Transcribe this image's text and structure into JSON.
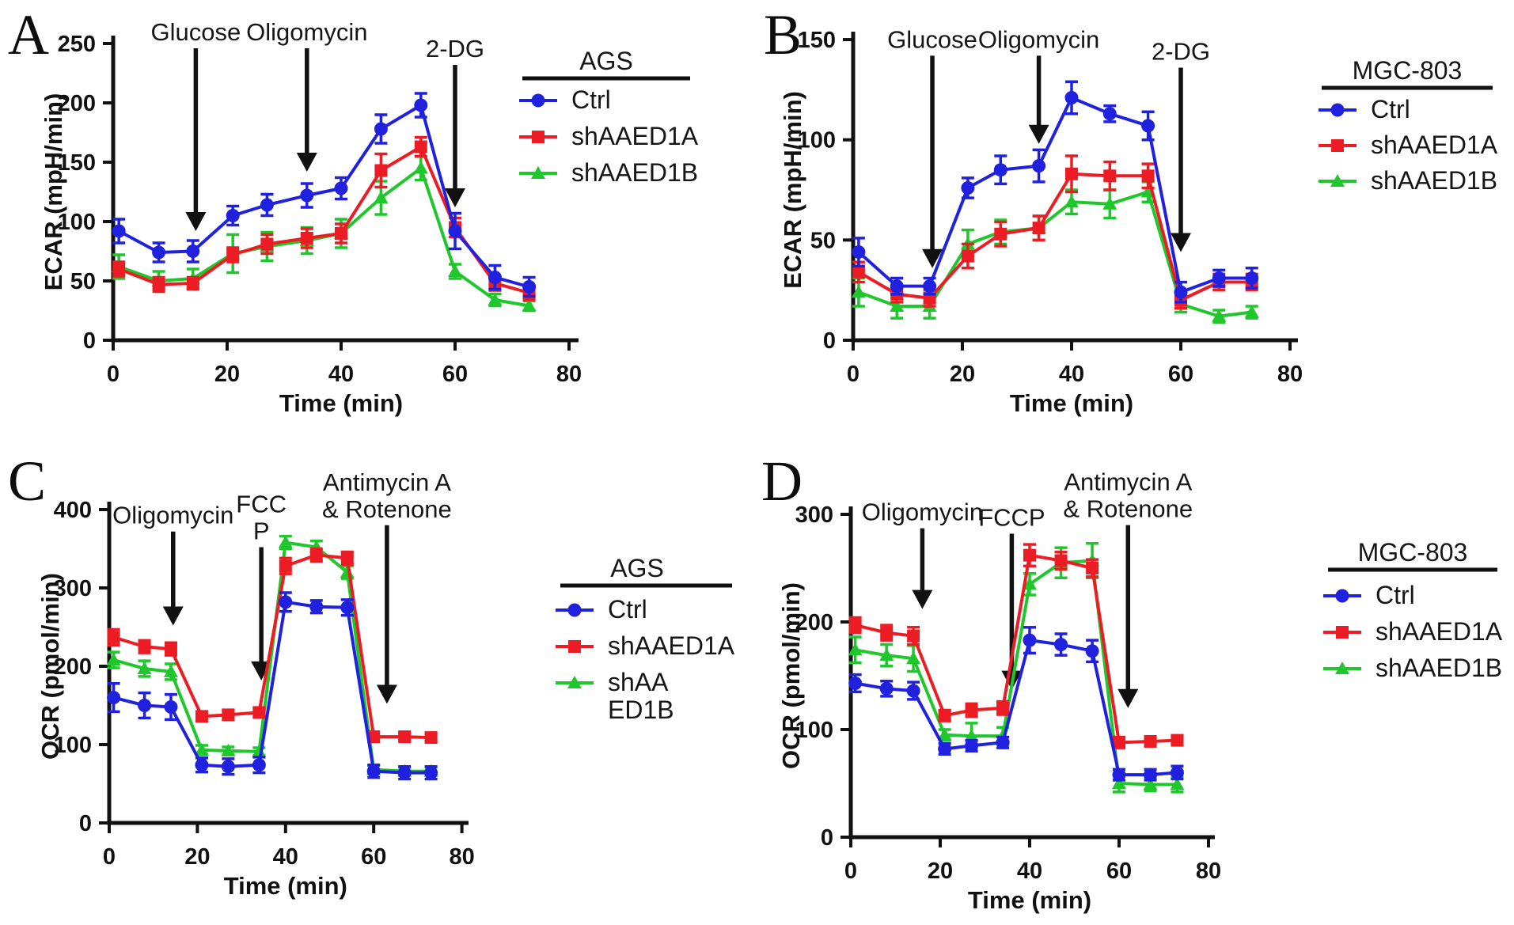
{
  "figure_title": "",
  "chart_data": [
    {
      "panel_letter": "A",
      "type": "line",
      "cell_line": "AGS",
      "legend_title": "AGS",
      "xlabel": "Time (min)",
      "ylabel": "ECAR (mpH/min)",
      "xlim": [
        0,
        80
      ],
      "ylim": [
        0,
        250
      ],
      "xticks": [
        0,
        20,
        40,
        60,
        80
      ],
      "yticks": [
        0,
        50,
        100,
        150,
        200,
        250
      ],
      "x": [
        1,
        8,
        14,
        21,
        27,
        34,
        40,
        47,
        54,
        60,
        67,
        73
      ],
      "series": [
        {
          "name": "Ctrl",
          "label_lines": [
            "Ctrl"
          ],
          "marker": "circle",
          "color": "#2020df",
          "values": [
            92,
            74,
            75,
            105,
            114,
            122,
            128,
            178,
            198,
            92,
            53,
            45
          ],
          "err": [
            10,
            8,
            9,
            8,
            9,
            10,
            9,
            12,
            10,
            15,
            10,
            8
          ]
        },
        {
          "name": "shAAED1A",
          "label_lines": [
            "shAAED1A"
          ],
          "marker": "square",
          "color": "#ec1c24",
          "values": [
            60,
            47,
            48,
            72,
            81,
            86,
            90,
            143,
            163,
            95,
            48,
            40
          ],
          "err": [
            6,
            6,
            5,
            6,
            8,
            8,
            8,
            14,
            8,
            8,
            6,
            6
          ]
        },
        {
          "name": "shAAED1B",
          "label_lines": [
            "shAAED1B"
          ],
          "marker": "triangle",
          "color": "#1fc72c",
          "values": [
            62,
            50,
            52,
            73,
            79,
            84,
            90,
            120,
            145,
            58,
            34,
            29
          ],
          "err": [
            10,
            8,
            8,
            16,
            12,
            11,
            12,
            14,
            10,
            6,
            5,
            4
          ]
        }
      ],
      "annotations": [
        {
          "lines": [
            "Glucose"
          ],
          "x": 14.5,
          "arrow_top": 246,
          "arrow_tip": 92
        },
        {
          "lines": [
            "Oligomycin"
          ],
          "x": 34,
          "arrow_top": 246,
          "arrow_tip": 142
        },
        {
          "lines": [
            "2-DG"
          ],
          "x": 60,
          "arrow_top": 232,
          "arrow_tip": 112
        }
      ]
    },
    {
      "panel_letter": "B",
      "type": "line",
      "cell_line": "MGC-803",
      "legend_title": "MGC-803",
      "xlabel": "Time (min)",
      "ylabel": "ECAR (mpH/min)",
      "xlim": [
        0,
        80
      ],
      "ylim": [
        0,
        150
      ],
      "xticks": [
        0,
        20,
        40,
        60,
        80
      ],
      "yticks": [
        0,
        50,
        100,
        150
      ],
      "x": [
        1,
        8,
        14,
        21,
        27,
        34,
        40,
        47,
        54,
        60,
        67,
        73
      ],
      "series": [
        {
          "name": "Ctrl",
          "label_lines": [
            "Ctrl"
          ],
          "marker": "circle",
          "color": "#2020df",
          "values": [
            44,
            27,
            27,
            76,
            85,
            87,
            121,
            113,
            107,
            24,
            31,
            31
          ],
          "err": [
            7,
            4,
            4,
            5,
            7,
            8,
            8,
            4,
            7,
            5,
            4,
            5
          ]
        },
        {
          "name": "shAAED1A",
          "label_lines": [
            "shAAED1A"
          ],
          "marker": "square",
          "color": "#ec1c24",
          "values": [
            34,
            23,
            21,
            42,
            53,
            56,
            83,
            82,
            82,
            20,
            29,
            29
          ],
          "err": [
            5,
            4,
            4,
            6,
            6,
            6,
            9,
            7,
            6,
            4,
            4,
            4
          ]
        },
        {
          "name": "shAAED1B",
          "label_lines": [
            "shAAED1B"
          ],
          "marker": "triangle",
          "color": "#1fc72c",
          "values": [
            24,
            17,
            17,
            48,
            54,
            56,
            69,
            68,
            74,
            18,
            12,
            14
          ],
          "err": [
            7,
            6,
            6,
            7,
            6,
            6,
            6,
            7,
            5,
            4,
            3,
            3
          ]
        }
      ],
      "annotations": [
        {
          "lines": [
            "Glucose"
          ],
          "x": 14.5,
          "arrow_top": 142,
          "arrow_tip": 36
        },
        {
          "lines": [
            "Oligomycin"
          ],
          "x": 34,
          "arrow_top": 142,
          "arrow_tip": 98
        },
        {
          "lines": [
            "2-DG"
          ],
          "x": 60,
          "arrow_top": 136,
          "arrow_tip": 44
        }
      ]
    },
    {
      "panel_letter": "C",
      "type": "line",
      "cell_line": "AGS",
      "legend_title": "AGS",
      "xlabel": "Time (min)",
      "ylabel": "OCR (pmol/min)",
      "xlim": [
        0,
        80
      ],
      "ylim": [
        0,
        400
      ],
      "xticks": [
        0,
        20,
        40,
        60,
        80
      ],
      "yticks": [
        0,
        100,
        200,
        300,
        400
      ],
      "x": [
        1,
        8,
        14,
        21,
        27,
        34,
        40,
        47,
        54,
        60,
        67,
        73
      ],
      "series": [
        {
          "name": "Ctrl",
          "label_lines": [
            "Ctrl"
          ],
          "marker": "circle",
          "color": "#2020df",
          "values": [
            160,
            150,
            148,
            74,
            72,
            74,
            282,
            276,
            275,
            66,
            64,
            64
          ],
          "err": [
            18,
            16,
            16,
            9,
            10,
            10,
            12,
            8,
            10,
            8,
            8,
            8
          ]
        },
        {
          "name": "shAAED1A",
          "label_lines": [
            "shAAED1A"
          ],
          "marker": "square",
          "color": "#ec1c24",
          "values": [
            237,
            225,
            222,
            136,
            138,
            141,
            328,
            342,
            338,
            110,
            110,
            109
          ],
          "err": [
            10,
            8,
            8,
            6,
            6,
            6,
            10,
            8,
            8,
            6,
            5,
            5
          ]
        },
        {
          "name": "shAAED1B",
          "label_lines": [
            "shAA",
            "ED1B"
          ],
          "marker": "triangle",
          "color": "#1fc72c",
          "values": [
            208,
            197,
            193,
            93,
            92,
            91,
            358,
            352,
            320,
            68,
            66,
            66
          ],
          "err": [
            10,
            10,
            10,
            6,
            5,
            5,
            8,
            8,
            8,
            5,
            5,
            5
          ]
        }
      ],
      "annotations": [
        {
          "lines": [
            "Oligomycin"
          ],
          "x": 14.5,
          "arrow_top": 372,
          "arrow_tip": 252
        },
        {
          "lines": [
            "FCC",
            "P"
          ],
          "x": 34.5,
          "arrow_top": 352,
          "arrow_tip": 182
        },
        {
          "lines": [
            "Antimycin A",
            "& Rotenone"
          ],
          "x": 63,
          "arrow_top": 380,
          "arrow_tip": 152
        }
      ]
    },
    {
      "panel_letter": "D",
      "type": "line",
      "cell_line": "MGC-803",
      "legend_title": "MGC-803",
      "xlabel": "Time (min)",
      "ylabel": "OCR (pmol/min)",
      "xlim": [
        0,
        80
      ],
      "ylim": [
        0,
        300
      ],
      "xticks": [
        0,
        20,
        40,
        60,
        80
      ],
      "yticks": [
        0,
        100,
        200,
        300
      ],
      "x": [
        1,
        8,
        14,
        21,
        27,
        34,
        40,
        47,
        54,
        60,
        67,
        73
      ],
      "series": [
        {
          "name": "Ctrl",
          "label_lines": [
            "Ctrl"
          ],
          "marker": "circle",
          "color": "#2020df",
          "values": [
            143,
            138,
            136,
            82,
            85,
            88,
            183,
            179,
            173,
            58,
            58,
            60
          ],
          "err": [
            8,
            7,
            8,
            5,
            5,
            5,
            12,
            10,
            10,
            5,
            5,
            6
          ]
        },
        {
          "name": "shAAED1A",
          "label_lines": [
            "shAAED1A"
          ],
          "marker": "square",
          "color": "#ec1c24",
          "values": [
            197,
            190,
            187,
            113,
            118,
            120,
            262,
            257,
            250,
            88,
            89,
            90
          ],
          "err": [
            7,
            7,
            8,
            5,
            6,
            6,
            10,
            8,
            8,
            5,
            4,
            4
          ]
        },
        {
          "name": "shAAED1B",
          "label_lines": [
            "shAAED1B"
          ],
          "marker": "triangle",
          "color": "#1fc72c",
          "values": [
            174,
            169,
            166,
            95,
            94,
            94,
            235,
            255,
            257,
            50,
            49,
            49
          ],
          "err": [
            12,
            10,
            12,
            5,
            12,
            8,
            10,
            14,
            16,
            8,
            6,
            7
          ]
        }
      ],
      "annotations": [
        {
          "lines": [
            "Oligomycin"
          ],
          "x": 16,
          "arrow_top": 287,
          "arrow_tip": 212
        },
        {
          "lines": [
            "FCCP"
          ],
          "x": 36,
          "arrow_top": 282,
          "arrow_tip": 137
        },
        {
          "lines": [
            "Antimycin A",
            "& Rotenone"
          ],
          "x": 62,
          "arrow_top": 290,
          "arrow_tip": 120
        }
      ]
    }
  ]
}
